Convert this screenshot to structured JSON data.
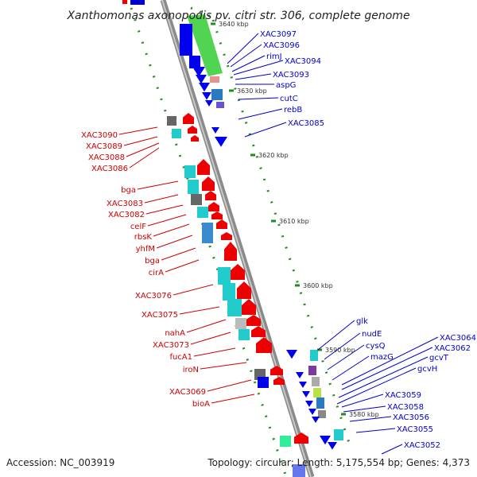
{
  "title": "Xanthomonas axonopodis pv. citri str. 306, complete genome",
  "footer": {
    "accession": "Accession: NC_003919",
    "summary": "Topology: circular; Length: 5,175,554 bp; Genes: 4,373"
  },
  "colors": {
    "forward_label": "#0000cc",
    "reverse_label": "#cc0000",
    "backbone": "#8c8c8c",
    "forward_gene": "#0000ee",
    "reverse_gene": "#ee0000",
    "cds_cyan": "#22cccc",
    "rna_green": "#33cc33",
    "gc_skew": "#228b22"
  },
  "ticks": [
    "3640 kbp",
    "3630 kbp",
    "3620 kbp",
    "3610 kbp",
    "3600 kbp",
    "3590 kbp",
    "3580 kbp"
  ],
  "forward_labels": [
    "XAC3097",
    "XAC3096",
    "rimJ",
    "XAC3094",
    "XAC3093",
    "aspG",
    "cutC",
    "rebB",
    "XAC3085",
    "glk",
    "nudE",
    "cysQ",
    "mazG",
    "XAC3064",
    "XAC3062",
    "gcvT",
    "gcvH",
    "XAC3059",
    "XAC3058",
    "XAC3056",
    "XAC3055",
    "XAC3052"
  ],
  "reverse_labels": [
    "XAC3090",
    "XAC3089",
    "XAC3088",
    "XAC3086",
    "bga",
    "XAC3083",
    "XAC3082",
    "celF",
    "rbsK",
    "yhfM",
    "bga",
    "cirA",
    "XAC3076",
    "XAC3075",
    "nahA",
    "XAC3073",
    "fucA1",
    "iroN",
    "XAC3069",
    "bioA"
  ]
}
